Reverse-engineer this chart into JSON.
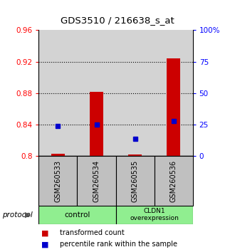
{
  "title": "GDS3510 / 216638_s_at",
  "samples": [
    "GSM260533",
    "GSM260534",
    "GSM260535",
    "GSM260536"
  ],
  "red_bar_values": [
    0.803,
    0.882,
    0.802,
    0.924
  ],
  "red_bar_base": 0.8,
  "blue_dot_values": [
    0.8385,
    0.84,
    0.822,
    0.845
  ],
  "ylim_left": [
    0.8,
    0.96
  ],
  "ylim_right": [
    0,
    100
  ],
  "yticks_left": [
    0.8,
    0.84,
    0.88,
    0.92,
    0.96
  ],
  "ytick_labels_left": [
    "0.8",
    "0.84",
    "0.88",
    "0.92",
    "0.96"
  ],
  "yticks_right": [
    0,
    25,
    50,
    75,
    100
  ],
  "ytick_labels_right": [
    "0",
    "25",
    "50",
    "75",
    "100%"
  ],
  "dotted_lines": [
    0.84,
    0.88,
    0.92
  ],
  "bar_color": "#cc0000",
  "dot_color": "#0000cc",
  "bar_width": 0.35,
  "plot_bg": "#d3d3d3",
  "sample_box_color": "#c0c0c0",
  "legend_items": [
    "transformed count",
    "percentile rank within the sample"
  ],
  "protocol_color": "#90ee90"
}
